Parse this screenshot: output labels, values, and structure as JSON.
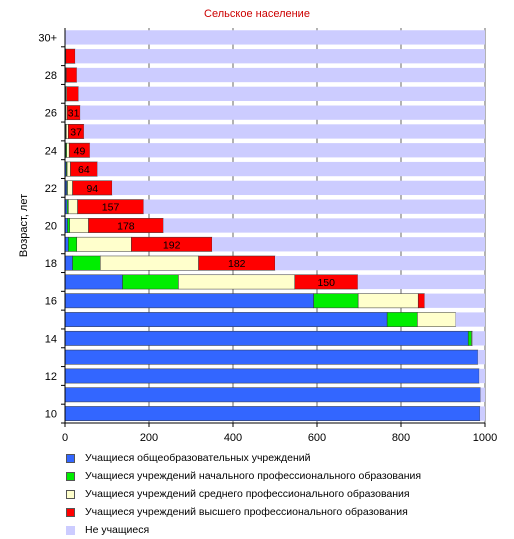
{
  "chart_data": {
    "type": "bar",
    "orientation": "horizontal",
    "stacked": true,
    "title": "Сельское население",
    "ylabel": "Возраст, лет",
    "xlabel": "",
    "xlim": [
      0,
      1000
    ],
    "xticks": [
      "0",
      "200",
      "400",
      "600",
      "800",
      "1000"
    ],
    "categories": [
      "10",
      "11",
      "12",
      "13",
      "14",
      "15",
      "16",
      "17",
      "18",
      "19",
      "20",
      "21",
      "22",
      "23",
      "24",
      "25",
      "26",
      "27",
      "28",
      "29",
      "30+"
    ],
    "category_tick_labels": [
      "10",
      "",
      "12",
      "",
      "14",
      "",
      "16",
      "",
      "18",
      "",
      "20",
      "",
      "22",
      "",
      "24",
      "",
      "26",
      "",
      "28",
      "",
      "30+"
    ],
    "grid": true,
    "legend_position": "bottom",
    "series": [
      {
        "name": "Учащиеся общеобразовательных учреждений",
        "color": "#3366ff",
        "values": [
          988,
          989,
          986,
          983,
          960,
          767,
          592,
          137,
          18,
          8,
          6,
          5,
          4,
          3,
          2,
          2,
          1,
          1,
          1,
          1,
          0
        ]
      },
      {
        "name": "Учащиеся учреждений начального профессионального образования",
        "color": "#00ee00",
        "values": [
          0,
          0,
          0,
          0,
          8,
          72,
          106,
          133,
          66,
          20,
          5,
          3,
          2,
          2,
          2,
          1,
          1,
          1,
          1,
          0,
          0
        ]
      },
      {
        "name": "Учащиеся учреждений среднего профессионального образования",
        "color": "#ffffcc",
        "values": [
          0,
          0,
          0,
          0,
          2,
          91,
          143,
          277,
          234,
          130,
          45,
          22,
          12,
          8,
          6,
          5,
          3,
          2,
          1,
          1,
          0
        ]
      },
      {
        "name": "Учащиеся учреждений высшего профессионального образования",
        "color": "#ff0000",
        "values": [
          0,
          0,
          0,
          0,
          0,
          0,
          15,
          150,
          182,
          192,
          178,
          157,
          94,
          64,
          49,
          37,
          31,
          28,
          25,
          22,
          0
        ]
      },
      {
        "name": "Не учащиеся",
        "color": "#ccccff",
        "values": [
          12,
          11,
          14,
          17,
          30,
          70,
          144,
          303,
          500,
          650,
          766,
          813,
          888,
          923,
          941,
          955,
          964,
          968,
          972,
          976,
          1000
        ]
      }
    ],
    "data_labels": [
      {
        "category": "17",
        "series": "Учащиеся учреждений высшего профессионального образования",
        "text": "150"
      },
      {
        "category": "18",
        "series": "Учащиеся учреждений высшего профессионального образования",
        "text": "182"
      },
      {
        "category": "19",
        "series": "Учащиеся учреждений высшего профессионального образования",
        "text": "192"
      },
      {
        "category": "20",
        "series": "Учащиеся учреждений высшего профессионального образования",
        "text": "178"
      },
      {
        "category": "21",
        "series": "Учащиеся учреждений высшего профессионального образования",
        "text": "157"
      },
      {
        "category": "22",
        "series": "Учащиеся учреждений высшего профессионального образования",
        "text": "94"
      },
      {
        "category": "23",
        "series": "Учащиеся учреждений высшего профессионального образования",
        "text": "64"
      },
      {
        "category": "24",
        "series": "Учащиеся учреждений высшего профессионального образования",
        "text": "49"
      },
      {
        "category": "25",
        "series": "Учащиеся учреждений высшего профессионального образования",
        "text": "37"
      },
      {
        "category": "26",
        "series": "Учащиеся учреждений высшего профессионального образования",
        "text": "31"
      }
    ]
  }
}
